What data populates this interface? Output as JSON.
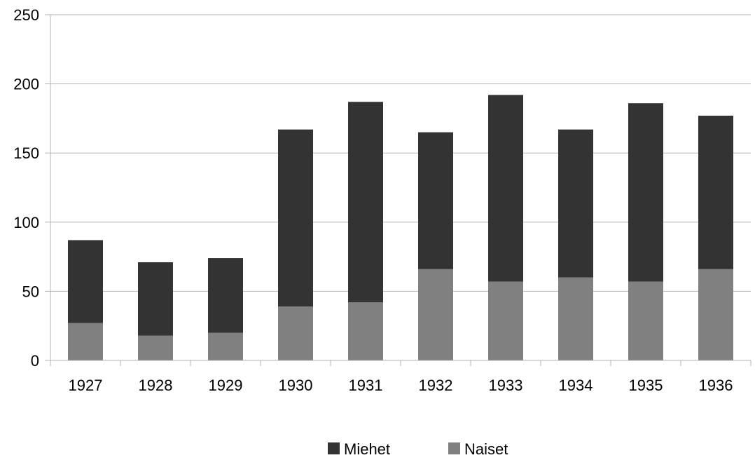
{
  "chart_data": {
    "type": "bar",
    "stacked": true,
    "categories": [
      "1927",
      "1928",
      "1929",
      "1930",
      "1931",
      "1932",
      "1933",
      "1934",
      "1935",
      "1936"
    ],
    "series": [
      {
        "name": "Naiset",
        "color": "#808080",
        "values": [
          27,
          18,
          20,
          39,
          42,
          66,
          57,
          60,
          57,
          66
        ]
      },
      {
        "name": "Miehet",
        "color": "#333333",
        "values": [
          60,
          53,
          54,
          128,
          145,
          99,
          135,
          107,
          129,
          111
        ]
      }
    ],
    "legend_order": [
      "Miehet",
      "Naiset"
    ],
    "yticks": [
      "0",
      "50",
      "100",
      "150",
      "200",
      "250"
    ],
    "ylim": [
      0,
      250
    ],
    "title": "",
    "xlabel": "",
    "ylabel": "",
    "grid": true,
    "legend_position": "bottom"
  }
}
